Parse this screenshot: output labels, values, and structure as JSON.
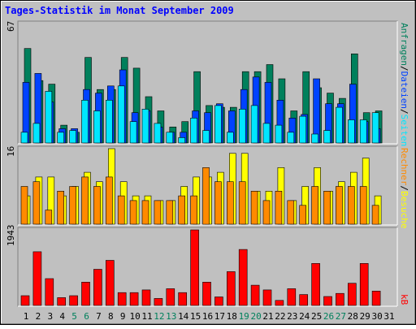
{
  "colors": {
    "background": "#C0C0C0",
    "title": "#0000FF",
    "hits": "#00805C",
    "files": "#0042FF",
    "pages": "#00E6FF",
    "visits": "#FFFF00",
    "sites": "#FF8A00",
    "kbytes": "#FF0000",
    "weekend_label": "#00805C"
  },
  "chart_data": [
    {
      "type": "bar",
      "title": "Tages-Statistik im Monat September 2009",
      "y_max_label": "67",
      "ylim": [
        0,
        67
      ],
      "right_label": {
        "hits": "Anfragen",
        "files": "Dateien",
        "pages": "Seiten",
        "sep": "/"
      },
      "categories": [
        "1",
        "2",
        "3",
        "4",
        "5",
        "6",
        "7",
        "8",
        "9",
        "10",
        "11",
        "12",
        "13",
        "14",
        "15",
        "16",
        "17",
        "18",
        "19",
        "20",
        "21",
        "22",
        "23",
        "24",
        "25",
        "26",
        "27",
        "28",
        "29",
        "30",
        "31"
      ],
      "weekend_days": [
        "5",
        "6",
        "12",
        "13",
        "19",
        "20",
        "26",
        "27"
      ],
      "series": [
        {
          "name": "Anfragen",
          "color_key": "hits",
          "values": [
            53,
            35,
            33,
            10,
            6,
            48,
            30,
            30,
            48,
            42,
            26,
            18,
            9,
            12,
            40,
            21,
            20,
            20,
            40,
            40,
            44,
            36,
            18,
            40,
            31,
            28,
            25,
            50,
            17,
            18,
            0
          ]
        },
        {
          "name": "Dateien",
          "color_key": "files",
          "values": [
            34,
            39,
            23,
            8,
            8,
            30,
            28,
            32,
            41,
            17,
            18,
            9,
            6,
            6,
            18,
            17,
            22,
            18,
            30,
            37,
            34,
            24,
            14,
            16,
            36,
            22,
            22,
            33,
            12,
            8,
            0
          ]
        },
        {
          "name": "Seiten",
          "color_key": "pages",
          "values": [
            6,
            11,
            29,
            6,
            7,
            24,
            18,
            24,
            32,
            12,
            19,
            11,
            6,
            3,
            14,
            7,
            21,
            6,
            19,
            21,
            11,
            10,
            6,
            15,
            5,
            7,
            20,
            13,
            13,
            17,
            0
          ]
        }
      ]
    },
    {
      "type": "bar",
      "y_max_label": "16",
      "ylim": [
        0,
        16
      ],
      "right_label": {
        "visits": "Besuche",
        "sites": "Rechner",
        "sep": "/"
      },
      "categories": [
        "1",
        "2",
        "3",
        "4",
        "5",
        "6",
        "7",
        "8",
        "9",
        "10",
        "11",
        "12",
        "13",
        "14",
        "15",
        "16",
        "17",
        "18",
        "19",
        "20",
        "21",
        "22",
        "23",
        "24",
        "25",
        "26",
        "27",
        "28",
        "29",
        "30",
        "31"
      ],
      "series": [
        {
          "name": "Besuche",
          "color_key": "visits",
          "values": [
            6,
            10,
            10,
            6,
            8,
            11,
            9,
            16,
            9,
            6,
            6,
            5,
            5,
            8,
            10,
            10,
            11,
            15,
            15,
            7,
            7,
            12,
            5,
            8,
            12,
            7,
            9,
            11,
            14,
            6,
            0
          ]
        },
        {
          "name": "Rechner",
          "color_key": "sites",
          "values": [
            8,
            9,
            3,
            7,
            8,
            10,
            8,
            10,
            6,
            5,
            5,
            5,
            5,
            6,
            6,
            12,
            9,
            9,
            9,
            7,
            5,
            7,
            5,
            4,
            8,
            7,
            8,
            8,
            8,
            4,
            0
          ]
        }
      ]
    },
    {
      "type": "bar",
      "y_max_label": "1943",
      "ylim": [
        0,
        1943
      ],
      "right_label": {
        "kbytes": "kB"
      },
      "categories": [
        "1",
        "2",
        "3",
        "4",
        "5",
        "6",
        "7",
        "8",
        "9",
        "10",
        "11",
        "12",
        "13",
        "14",
        "15",
        "16",
        "17",
        "18",
        "19",
        "20",
        "21",
        "22",
        "23",
        "24",
        "25",
        "26",
        "27",
        "28",
        "29",
        "30",
        "31"
      ],
      "series": [
        {
          "name": "kB",
          "color_key": "kbytes",
          "values": [
            250,
            1380,
            690,
            200,
            250,
            600,
            930,
            1160,
            330,
            330,
            400,
            180,
            430,
            330,
            1943,
            600,
            220,
            870,
            1440,
            520,
            400,
            130,
            430,
            280,
            1080,
            230,
            310,
            570,
            1080,
            370,
            0
          ]
        }
      ]
    }
  ]
}
